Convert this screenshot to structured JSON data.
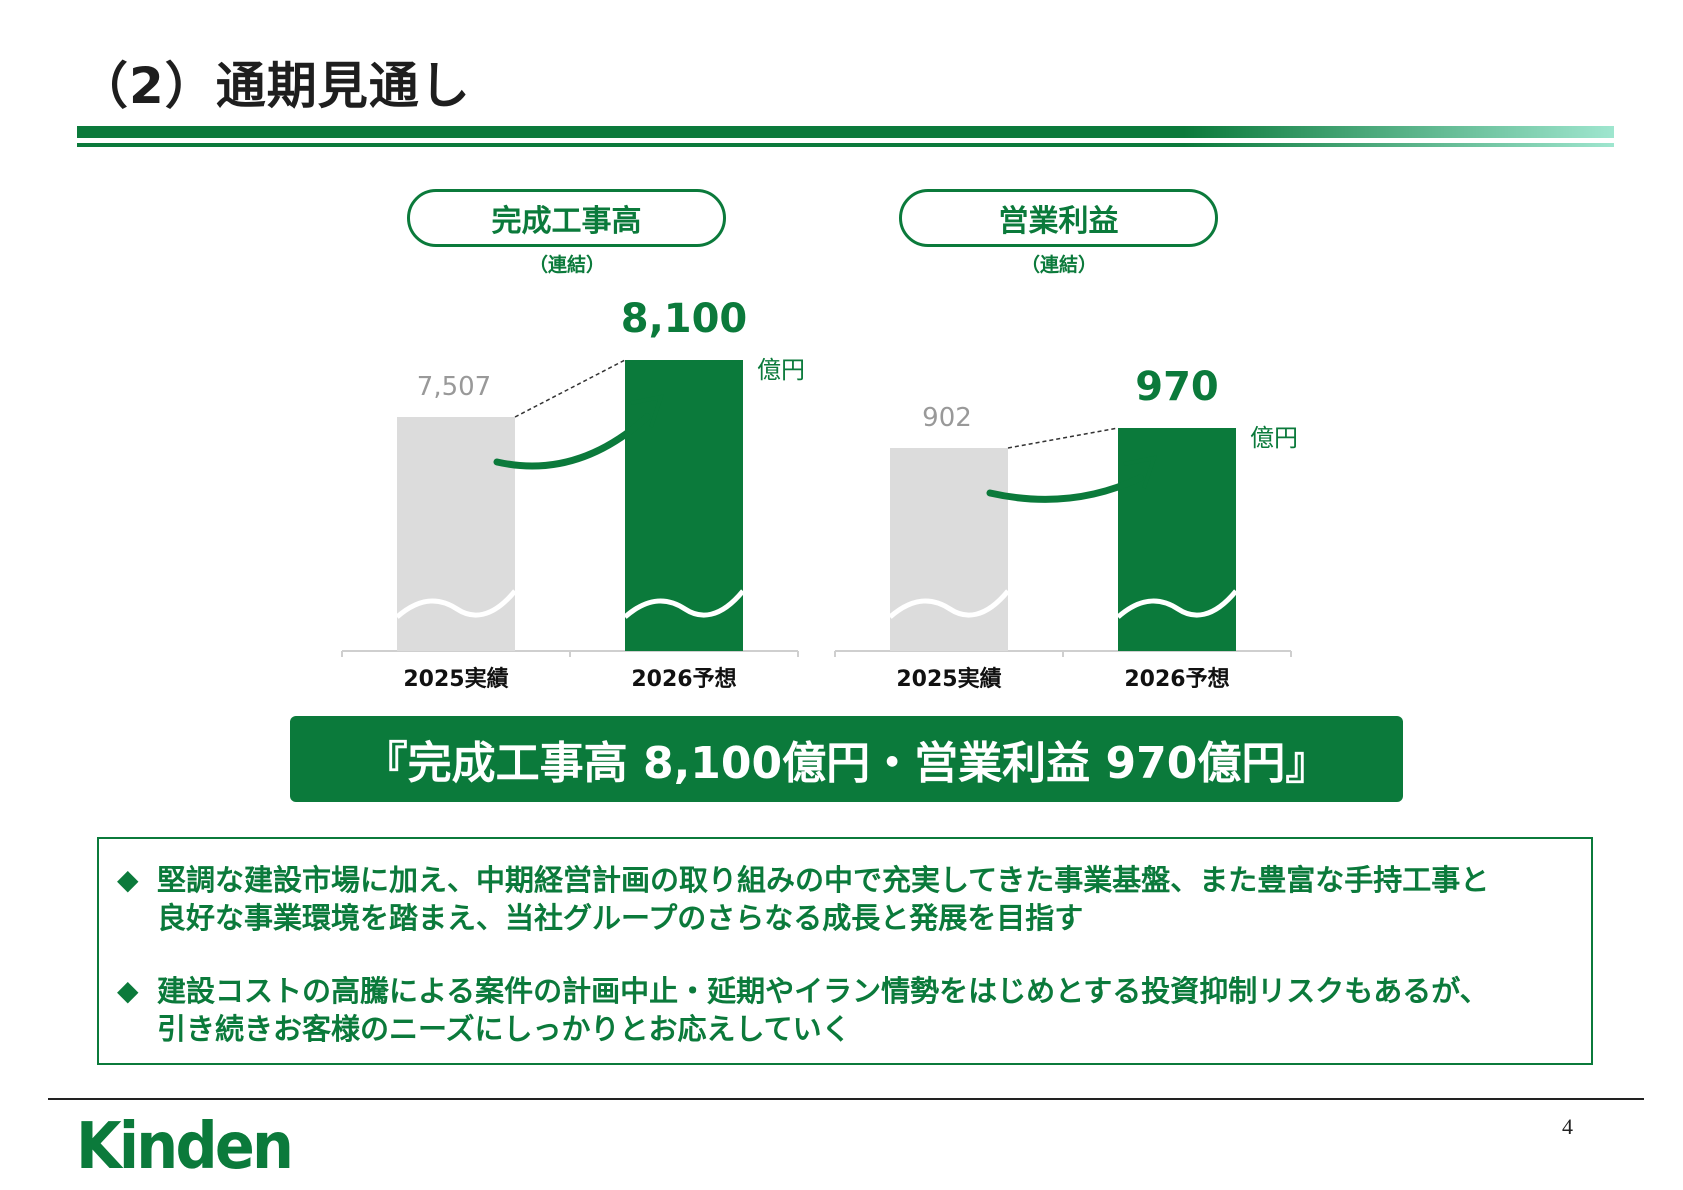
{
  "title": "（2）通期見通し",
  "page_number": "4",
  "logo_text": "Kinden",
  "colors": {
    "brand_green": "#0b7a3b",
    "actual_gray": "#dcdcdc",
    "accent_light": "#9fe6cf"
  },
  "chart_data": [
    {
      "type": "bar",
      "title": "完成工事高",
      "subtitle": "（連結）",
      "categories": [
        "2025実績",
        "2026予想"
      ],
      "values": [
        7507,
        8100
      ],
      "value_labels": [
        "7,507",
        "8,100"
      ],
      "unit": "億円",
      "axis_break": true
    },
    {
      "type": "bar",
      "title": "営業利益",
      "subtitle": "（連結）",
      "categories": [
        "2025実績",
        "2026予想"
      ],
      "values": [
        902,
        970
      ],
      "value_labels": [
        "902",
        "970"
      ],
      "unit": "億円",
      "axis_break": true
    }
  ],
  "banner": "『完成工事高 8,100億円・営業利益 970億円』",
  "notes": [
    {
      "bullet": "◆",
      "lines": [
        "堅調な建設市場に加え、中期経営計画の取り組みの中で充実してきた事業基盤、また豊富な手持工事と",
        "良好な事業環境を踏まえ、当社グループのさらなる成長と発展を目指す"
      ]
    },
    {
      "bullet": "◆",
      "lines": [
        "建設コストの高騰による案件の計画中止・延期やイラン情勢をはじめとする投資抑制リスクもあるが、",
        "引き続きお客様のニーズにしっかりとお応えしていく"
      ]
    }
  ]
}
